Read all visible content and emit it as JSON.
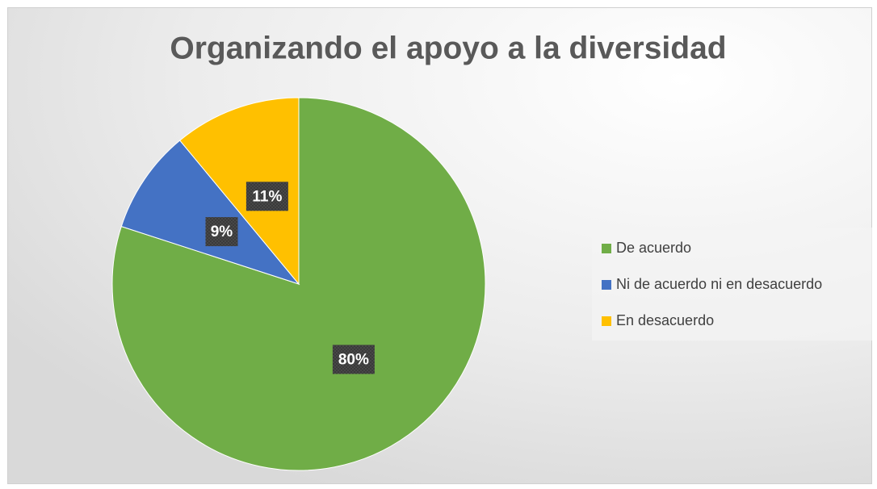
{
  "chart_data": {
    "type": "pie",
    "title": "Organizando el apoyo a la diversidad",
    "categories": [
      "De acuerdo",
      "Ni de acuerdo ni en desacuerdo",
      "En desacuerdo"
    ],
    "values": [
      80,
      9,
      11
    ],
    "value_labels": [
      "80%",
      "9%",
      "11%"
    ],
    "colors": [
      "#70ad47",
      "#4472c4",
      "#ffc000"
    ],
    "legend": "right"
  }
}
